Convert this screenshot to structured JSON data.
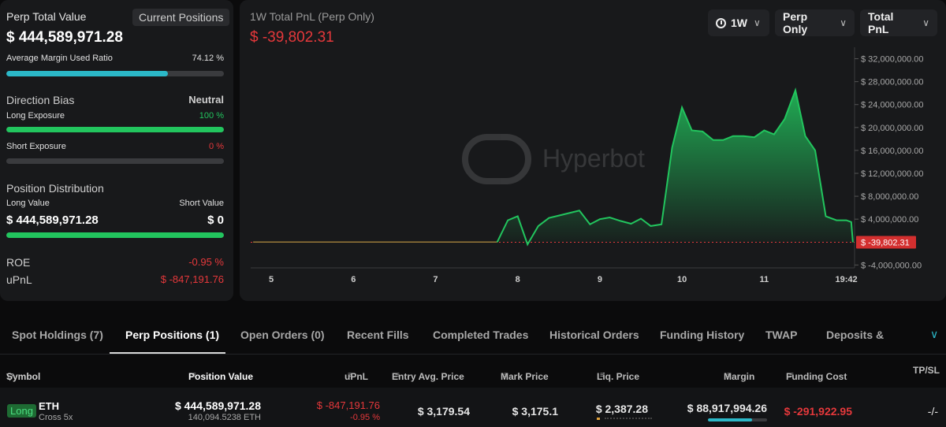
{
  "left": {
    "perp_total_value_label": "Perp Total Value",
    "current_positions_label": "Current Positions",
    "perp_total_value": "$ 444,589,971.28",
    "avg_margin_label": "Average Margin Used Ratio",
    "avg_margin_value": "74.12 %",
    "avg_margin_fraction": 0.7412,
    "direction_bias_label": "Direction Bias",
    "direction_bias_value": "Neutral",
    "long_exposure_label": "Long Exposure",
    "long_exposure_value": "100 %",
    "long_exposure_fraction": 1.0,
    "short_exposure_label": "Short Exposure",
    "short_exposure_value": "0 %",
    "short_exposure_fraction": 0,
    "position_distribution_label": "Position Distribution",
    "long_value_label": "Long Value",
    "short_value_label": "Short Value",
    "long_value": "$ 444,589,971.28",
    "short_value": "$ 0",
    "distribution_long_fraction": 1.0,
    "roe_label": "ROE",
    "roe_value": "-0.95 %",
    "upnl_label": "uPnL",
    "upnl_value": "$ -847,191.76"
  },
  "chart_panel": {
    "title": "1W Total PnL (Perp Only)",
    "total_pnl": "$ -39,802.31",
    "watermark": "Hyperbot",
    "dropdowns": {
      "period": "1W",
      "scope": "Perp Only",
      "metric": "Total PnL"
    },
    "current_value_badge": "$ -39,802.31"
  },
  "chart_data": {
    "type": "area",
    "title": "1W Total PnL (Perp Only)",
    "xlabel": "",
    "ylabel": "",
    "x_tick_labels": [
      "5",
      "6",
      "7",
      "8",
      "9",
      "10",
      "11",
      "19:42"
    ],
    "x_tick_values": [
      5,
      6,
      7,
      8,
      9,
      10,
      11,
      12.0
    ],
    "y_tick_labels": [
      "$ 32,000,000.00",
      "$ 28,000,000.00",
      "$ 24,000,000.00",
      "$ 20,000,000.00",
      "$ 16,000,000.00",
      "$ 12,000,000.00",
      "$ 8,000,000.00",
      "$ 4,000,000.00",
      "$ -4,000,000.00"
    ],
    "y_tick_values": [
      32000000,
      28000000,
      24000000,
      20000000,
      16000000,
      12000000,
      8000000,
      4000000,
      -4000000
    ],
    "ylim": [
      -4500000,
      34000000
    ],
    "xlim": [
      4.75,
      12.1
    ],
    "grid": false,
    "colors": {
      "positive": "#22c55e",
      "baseline": "#9a7a3a",
      "reference": "#e5383b"
    },
    "series": [
      {
        "values": [
          [
            4.78,
            0
          ],
          [
            5.0,
            0
          ],
          [
            6.0,
            0
          ],
          [
            7.0,
            0
          ],
          [
            7.75,
            0
          ],
          [
            7.88,
            3800000
          ],
          [
            8.0,
            4500000
          ],
          [
            8.12,
            -400000
          ],
          [
            8.25,
            2800000
          ],
          [
            8.38,
            4200000
          ],
          [
            8.55,
            4800000
          ],
          [
            8.75,
            5500000
          ],
          [
            8.88,
            3100000
          ],
          [
            9.0,
            4000000
          ],
          [
            9.12,
            4300000
          ],
          [
            9.25,
            3700000
          ],
          [
            9.38,
            3200000
          ],
          [
            9.5,
            4100000
          ],
          [
            9.62,
            2800000
          ],
          [
            9.75,
            3100000
          ],
          [
            9.88,
            16500000
          ],
          [
            10.0,
            23500000
          ],
          [
            10.12,
            19500000
          ],
          [
            10.25,
            19300000
          ],
          [
            10.38,
            17800000
          ],
          [
            10.5,
            17800000
          ],
          [
            10.62,
            18500000
          ],
          [
            10.75,
            18500000
          ],
          [
            10.88,
            18300000
          ],
          [
            11.0,
            19500000
          ],
          [
            11.12,
            18800000
          ],
          [
            11.25,
            21500000
          ],
          [
            11.38,
            26500000
          ],
          [
            11.5,
            18500000
          ],
          [
            11.62,
            16000000
          ],
          [
            11.75,
            4500000
          ],
          [
            11.88,
            3800000
          ],
          [
            12.0,
            3800000
          ],
          [
            12.06,
            3500000
          ],
          [
            12.08,
            -39802.31
          ]
        ]
      }
    ],
    "reference_line": -39802.31
  },
  "tabs": [
    "Spot Holdings (7)",
    "Perp Positions (1)",
    "Open Orders (0)",
    "Recent Fills",
    "Completed Trades",
    "Historical Orders",
    "Funding History",
    "TWAP",
    "Deposits & Withdraw"
  ],
  "table": {
    "headers": {
      "symbol": "Symbol",
      "position_value": "Position Value",
      "upnl": "uPnL",
      "entry": "Entry Avg. Price",
      "mark": "Mark Price",
      "liq": "Liq. Price",
      "margin": "Margin",
      "funding": "Funding Cost",
      "tpsl": "TP/SL"
    },
    "rows": [
      {
        "side": "Long",
        "symbol": "ETH",
        "mode": "Cross 5x",
        "position_value": "$ 444,589,971.28",
        "position_size": "140,094.5238 ETH",
        "upnl": "$ -847,191.76",
        "upnl_pct": "-0.95 %",
        "entry": "$ 3,179.54",
        "mark": "$ 3,175.1",
        "liq": "$ 2,387.28",
        "margin": "$ 88,917,994.26",
        "margin_fraction": 0.7412,
        "funding": "$ -291,922.95",
        "tpsl": "-/-"
      }
    ]
  }
}
